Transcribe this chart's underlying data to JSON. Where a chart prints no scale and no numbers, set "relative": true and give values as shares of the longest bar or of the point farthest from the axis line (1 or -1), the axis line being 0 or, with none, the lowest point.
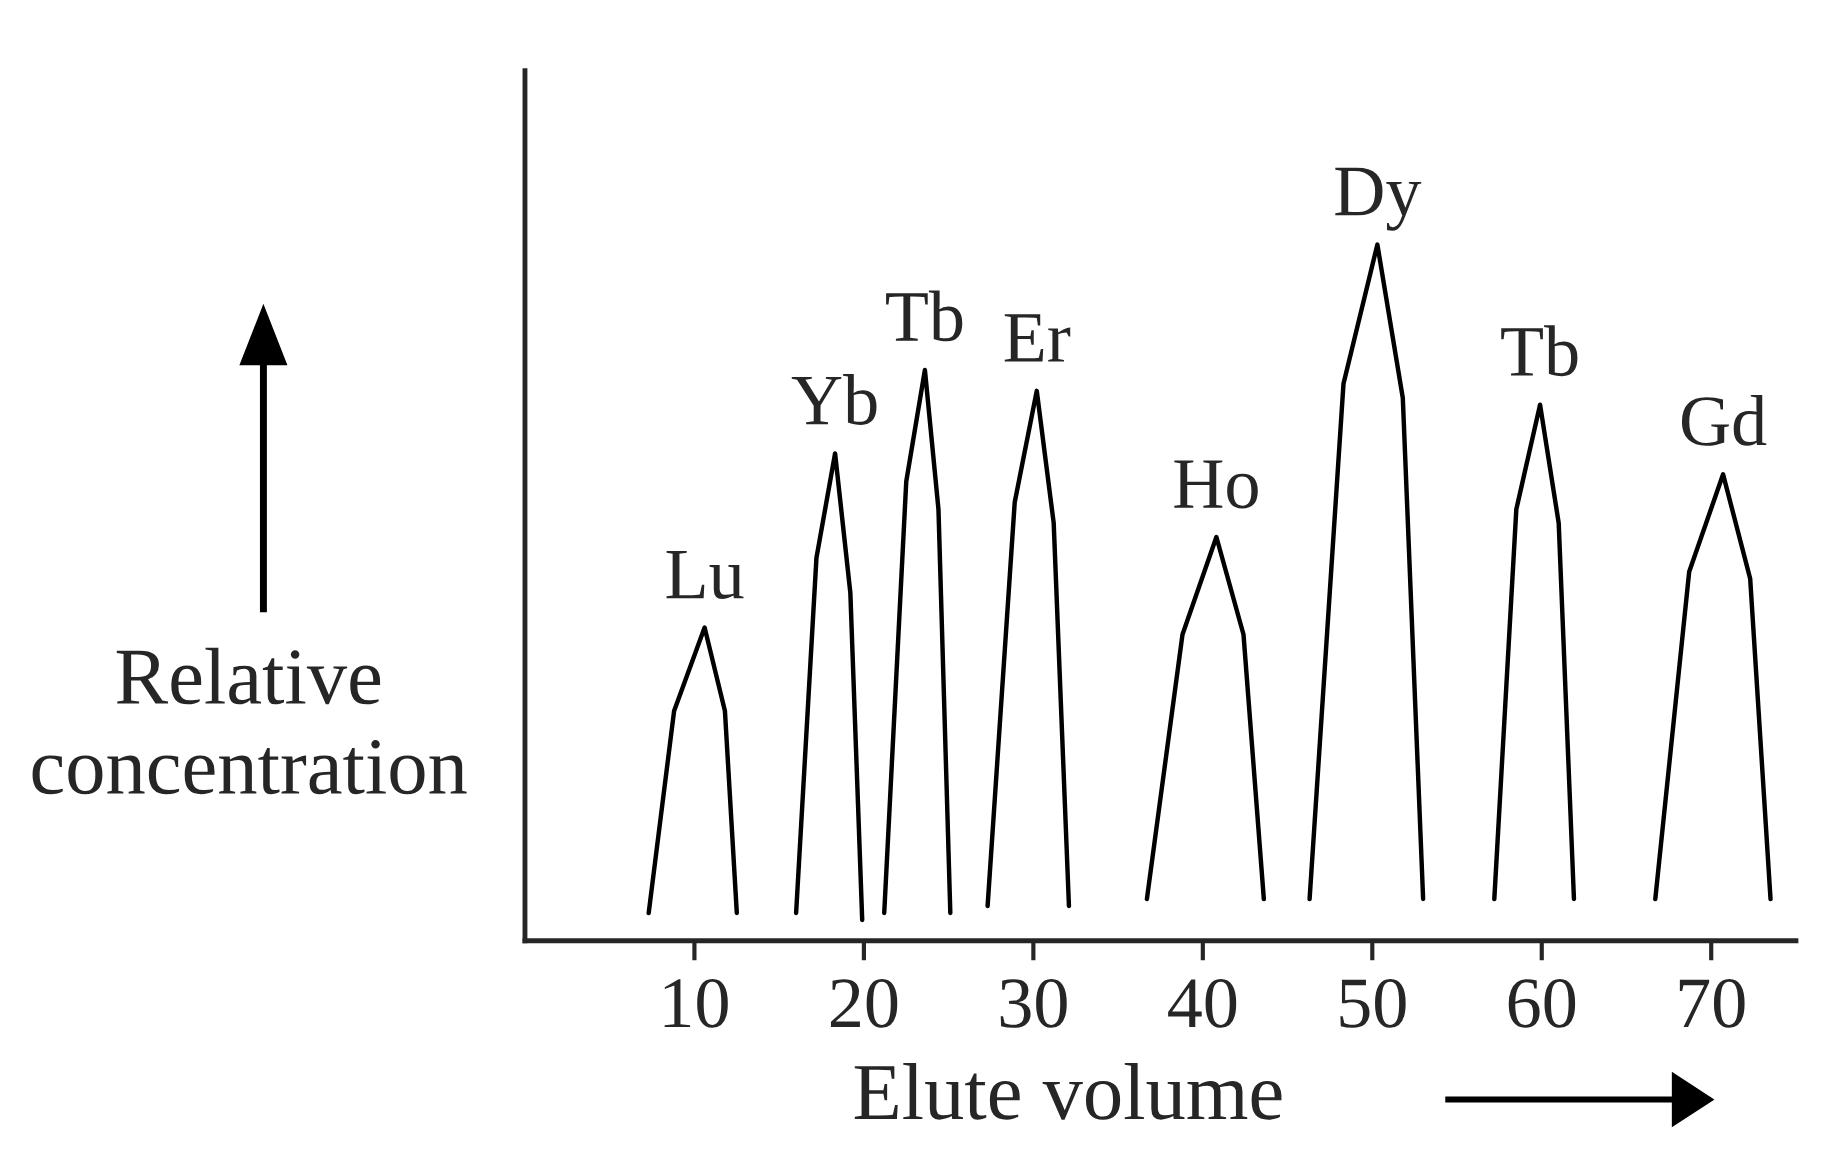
{
  "chart_data": {
    "type": "line",
    "relative": true,
    "xlabel": "Elute volume",
    "ylabel": "Relative concentration",
    "xlim": [
      0,
      75
    ],
    "xticks": [
      10,
      20,
      30,
      40,
      50,
      60,
      70
    ],
    "grid": false,
    "legend": false,
    "marker": "none",
    "line_style": "solid",
    "series": [
      {
        "name": "Lu",
        "color": "#000000",
        "x": [
          7.3,
          8.8,
          10.6,
          11.8,
          12.5
        ],
        "values": [
          0.04,
          0.33,
          0.45,
          0.33,
          0.04
        ]
      },
      {
        "name": "Yb",
        "color": "#000000",
        "x": [
          16.0,
          17.2,
          18.3,
          19.2,
          19.9
        ],
        "values": [
          0.04,
          0.55,
          0.7,
          0.5,
          0.03
        ]
      },
      {
        "name": "Tb",
        "color": "#000000",
        "x": [
          21.2,
          22.5,
          23.6,
          24.4,
          25.1
        ],
        "values": [
          0.04,
          0.66,
          0.82,
          0.62,
          0.04
        ]
      },
      {
        "name": "Er",
        "color": "#000000",
        "x": [
          27.3,
          28.9,
          30.2,
          31.2,
          32.1
        ],
        "values": [
          0.05,
          0.63,
          0.79,
          0.6,
          0.05
        ]
      },
      {
        "name": "Ho",
        "color": "#000000",
        "x": [
          36.7,
          38.8,
          40.8,
          42.4,
          43.6
        ],
        "values": [
          0.06,
          0.44,
          0.58,
          0.44,
          0.06
        ]
      },
      {
        "name": "Dy",
        "color": "#000000",
        "x": [
          46.3,
          48.3,
          50.3,
          51.8,
          53.0
        ],
        "values": [
          0.06,
          0.8,
          1.0,
          0.78,
          0.06
        ]
      },
      {
        "name": "Tb",
        "color": "#000000",
        "x": [
          57.2,
          58.5,
          59.9,
          61.0,
          61.9
        ],
        "values": [
          0.06,
          0.62,
          0.77,
          0.6,
          0.06
        ]
      },
      {
        "name": "Gd",
        "color": "#000000",
        "x": [
          66.7,
          68.7,
          70.7,
          72.3,
          73.5
        ],
        "values": [
          0.06,
          0.53,
          0.67,
          0.52,
          0.06
        ]
      }
    ]
  }
}
